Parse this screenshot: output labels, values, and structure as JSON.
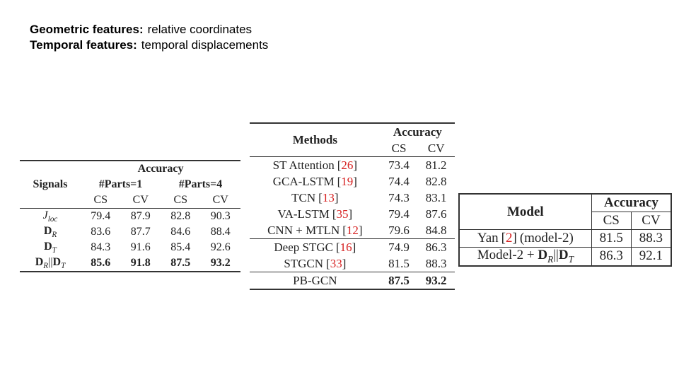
{
  "slide": {
    "lines": [
      {
        "label": "Geometric features:",
        "text": "relative coordinates"
      },
      {
        "label": "Temporal features:",
        "text": "temporal displacements"
      }
    ]
  },
  "table_signals": {
    "accuracy": "Accuracy",
    "signals": "Signals",
    "groups": [
      "#Parts=1",
      "#Parts=4"
    ],
    "metrics": [
      "CS",
      "CV",
      "CS",
      "CV"
    ],
    "rows": [
      {
        "label": [
          {
            "text": "J",
            "italic": true,
            "sub": "loc"
          }
        ],
        "values": [
          79.4,
          87.9,
          82.8,
          90.3
        ]
      },
      {
        "label": [
          {
            "text": "D",
            "bold": true,
            "sub": "R"
          }
        ],
        "values": [
          83.6,
          87.7,
          84.6,
          88.4
        ]
      },
      {
        "label": [
          {
            "text": "D",
            "bold": true,
            "sub": "T"
          }
        ],
        "values": [
          84.3,
          91.6,
          85.4,
          92.6
        ]
      },
      {
        "label": [
          {
            "text": "D",
            "bold": true,
            "sub": "R"
          },
          {
            "text": "||"
          },
          {
            "text": "D",
            "bold": true,
            "sub": "T"
          }
        ],
        "values": [
          85.6,
          91.8,
          87.5,
          93.2
        ],
        "bold": true
      }
    ]
  },
  "table_methods": {
    "methods": "Methods",
    "accuracy": "Accuracy",
    "metrics": [
      "CS",
      "CV"
    ],
    "bracket_open": "[",
    "bracket_close": "]",
    "groups": [
      [
        {
          "name": "ST Attention",
          "ref": "26",
          "values": [
            73.4,
            81.2
          ]
        },
        {
          "name": "GCA-LSTM",
          "ref": "19",
          "values": [
            74.4,
            82.8
          ]
        },
        {
          "name": "TCN",
          "ref": "13",
          "values": [
            74.3,
            83.1
          ]
        },
        {
          "name": "VA-LSTM",
          "ref": "35",
          "values": [
            79.4,
            87.6
          ]
        },
        {
          "name": "CNN + MTLN",
          "ref": "12",
          "values": [
            79.6,
            84.8
          ]
        }
      ],
      [
        {
          "name": "Deep STGC",
          "ref": "16",
          "values": [
            74.9,
            86.3
          ]
        },
        {
          "name": "STGCN",
          "ref": "33",
          "values": [
            81.5,
            88.3
          ]
        }
      ],
      [
        {
          "name": "PB-GCN",
          "values": [
            87.5,
            93.2
          ],
          "bold": true
        }
      ]
    ]
  },
  "table_model": {
    "model": "Model",
    "accuracy": "Accuracy",
    "metrics": [
      "CS",
      "CV"
    ],
    "bracket_open": "[",
    "bracket_close": "]",
    "rows": [
      {
        "name": "Yan",
        "ref": "2",
        "suffix": "(model-2)",
        "values": [
          81.5,
          88.3
        ]
      },
      {
        "label": [
          {
            "text": "Model-2 + "
          },
          {
            "text": "D",
            "bold": true,
            "sub": "R"
          },
          {
            "text": "||"
          },
          {
            "text": "D",
            "bold": true,
            "sub": "T"
          }
        ],
        "values": [
          86.3,
          92.1
        ]
      }
    ]
  }
}
